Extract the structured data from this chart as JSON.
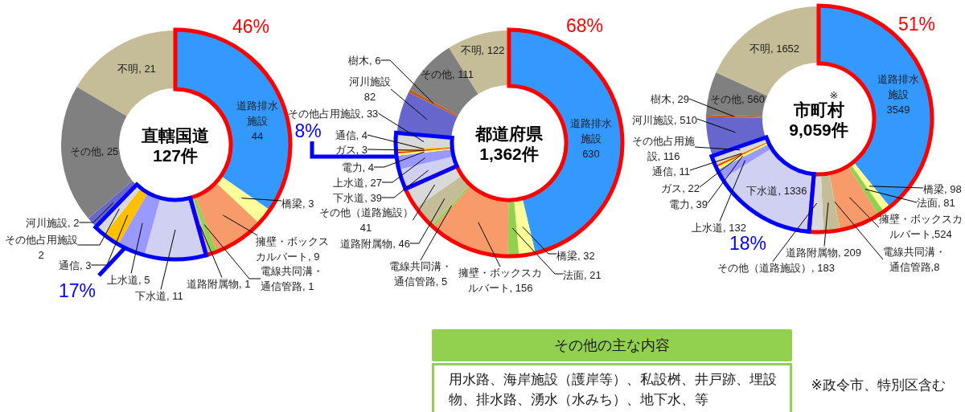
{
  "chart_data": [
    {
      "type": "donut",
      "title": "直轄国道",
      "subtitle": "127件",
      "categories": [
        "道路排水施設",
        "橋梁",
        "擁壁・ボックスカルバート",
        "電線共同溝・通信管路",
        "道路附属物",
        "下水道",
        "上水道",
        "通信",
        "その他占用施設",
        "河川施設",
        "その他",
        "不明"
      ],
      "values": [
        44,
        3,
        9,
        1,
        1,
        11,
        5,
        3,
        2,
        2,
        25,
        21
      ],
      "value_labels": [
        "44",
        ", 3",
        ", 9",
        ", 1",
        ", 1",
        ", 11",
        ", 5",
        ", 3",
        "2",
        ", 2",
        ", 25",
        ", 21"
      ],
      "colors": [
        "#3399ff",
        "#ffff99",
        "#f79b6b",
        "#92d050",
        "#c4bd97",
        "#d0d0f2",
        "#9999ff",
        "#ffc000",
        "#d9d9d9",
        "#6666cc",
        "#808080",
        "#c4bd97"
      ],
      "annotations": [
        "46%",
        "17%"
      ]
    },
    {
      "type": "donut",
      "title": "都道府県",
      "subtitle": "1,362件",
      "categories": [
        "道路排水施設",
        "橋梁",
        "法面",
        "擁壁・ボックスカルバート",
        "電線共同溝・通信管路",
        "道路附属物",
        "その他（道路施設）",
        "下水道",
        "上水道",
        "電力",
        "ガス",
        "通信",
        "その他占用施設",
        "河川施設",
        "樹木",
        "その他",
        "不明"
      ],
      "values": [
        630,
        32,
        21,
        156,
        5,
        46,
        41,
        39,
        27,
        4,
        3,
        4,
        33,
        82,
        6,
        111,
        122
      ],
      "value_labels": [
        "630",
        ", 32",
        ", 21",
        ", 156",
        ", 5",
        ", 46",
        "41",
        ", 39",
        ", 27",
        ", 4",
        ", 3",
        ", 4",
        ", 33",
        "82",
        ", 6",
        ", 111",
        ", 122"
      ],
      "colors": [
        "#3399ff",
        "#ffff99",
        "#92d050",
        "#f79b6b",
        "#92d050",
        "#c4bd97",
        "#d9d9d9",
        "#d0d0f2",
        "#9999ff",
        "#ffff66",
        "#ff3300",
        "#ffc000",
        "#d9d9d9",
        "#6666cc",
        "#c55a11",
        "#808080",
        "#c4bd97"
      ],
      "annotations": [
        "68%",
        "8%"
      ]
    },
    {
      "type": "donut",
      "title": "市町村",
      "subtitle": "9,059件",
      "categories": [
        "道路排水施設",
        "橋梁",
        "法面",
        "擁壁・ボックスカルバート",
        "電線共同溝・通信管路",
        "道路附属物",
        "その他（道路施設）",
        "下水道",
        "上水道",
        "電力",
        "ガス",
        "通信",
        "その他占用施設",
        "河川施設",
        "樹木",
        "その他",
        "不明"
      ],
      "values": [
        3549,
        98,
        81,
        524,
        8,
        209,
        183,
        1336,
        132,
        39,
        22,
        11,
        116,
        510,
        29,
        560,
        1652
      ],
      "value_labels": [
        "3549",
        ", 98",
        ", 81",
        ",524",
        ",8",
        ", 209",
        ", 183",
        ", 1336",
        ", 132",
        ", 39",
        ", 22",
        ", 11",
        ", 116",
        ", 510",
        ", 29",
        ", 560",
        ", 1652"
      ],
      "colors": [
        "#3399ff",
        "#ffff99",
        "#92d050",
        "#f79b6b",
        "#92d050",
        "#c4bd97",
        "#d9d9d9",
        "#d0d0f2",
        "#9999ff",
        "#ffff66",
        "#ff3300",
        "#ffc000",
        "#d9d9d9",
        "#6666cc",
        "#c55a11",
        "#808080",
        "#c4bd97"
      ],
      "annotations": [
        "51%",
        "18%",
        "※",
        "※政令市、特別区含む"
      ]
    },
    {
      "type": "other",
      "title": "その他の主な内容",
      "annotations": [
        "用水路、海岸施設（護岸等）、私設桝、井戸跡、埋設物、排水路、湧水（水みち）、地下水、等"
      ]
    }
  ]
}
